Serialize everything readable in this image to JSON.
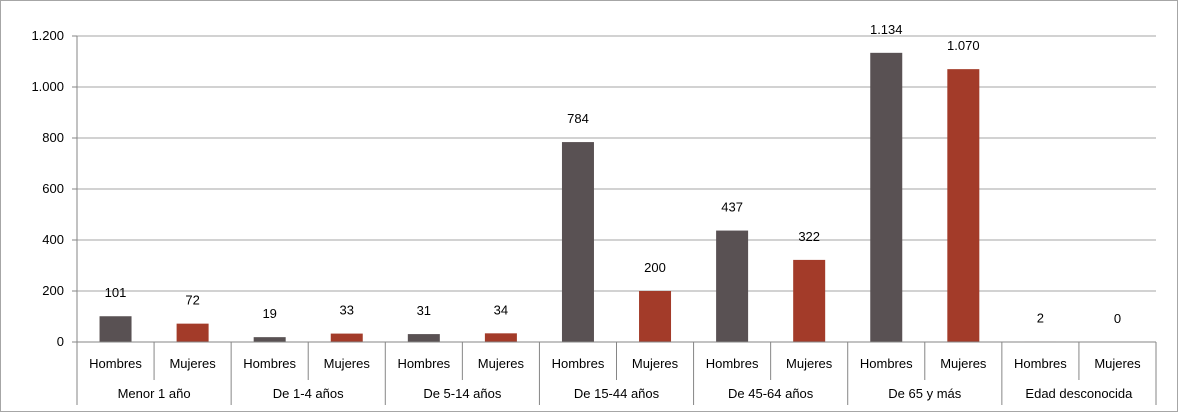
{
  "chart_data": {
    "type": "bar",
    "title": "",
    "xlabel": "",
    "ylabel": "",
    "ylim": [
      0,
      1200
    ],
    "yticks": [
      0,
      200,
      400,
      600,
      800,
      1000,
      1200
    ],
    "ytick_labels": [
      "0",
      "200",
      "400",
      "600",
      "800",
      "1.000",
      "1.200"
    ],
    "grid": true,
    "legend": "none",
    "groups": [
      {
        "label": "Menor 1 año",
        "bars": [
          {
            "label": "Hombres",
            "value": 101,
            "value_label": "101"
          },
          {
            "label": "Mujeres",
            "value": 72,
            "value_label": "72"
          }
        ]
      },
      {
        "label": "De 1-4 años",
        "bars": [
          {
            "label": "Hombres",
            "value": 19,
            "value_label": "19"
          },
          {
            "label": "Mujeres",
            "value": 33,
            "value_label": "33"
          }
        ]
      },
      {
        "label": "De 5-14 años",
        "bars": [
          {
            "label": "Hombres",
            "value": 31,
            "value_label": "31"
          },
          {
            "label": "Mujeres",
            "value": 34,
            "value_label": "34"
          }
        ]
      },
      {
        "label": "De 15-44 años",
        "bars": [
          {
            "label": "Hombres",
            "value": 784,
            "value_label": "784"
          },
          {
            "label": "Mujeres",
            "value": 200,
            "value_label": "200"
          }
        ]
      },
      {
        "label": "De 45-64 años",
        "bars": [
          {
            "label": "Hombres",
            "value": 437,
            "value_label": "437"
          },
          {
            "label": "Mujeres",
            "value": 322,
            "value_label": "322"
          }
        ]
      },
      {
        "label": "De 65 y más",
        "bars": [
          {
            "label": "Hombres",
            "value": 1134,
            "value_label": "1.134"
          },
          {
            "label": "Mujeres",
            "value": 1070,
            "value_label": "1.070"
          }
        ]
      },
      {
        "label": "Edad desconocida",
        "bars": [
          {
            "label": "Hombres",
            "value": 2,
            "value_label": "2"
          },
          {
            "label": "Mujeres",
            "value": 0,
            "value_label": "0"
          }
        ]
      }
    ],
    "colors": {
      "Hombres": "#595153",
      "Mujeres": "#a33b29",
      "grid": "#a6a6a6",
      "axis": "#868686"
    }
  }
}
